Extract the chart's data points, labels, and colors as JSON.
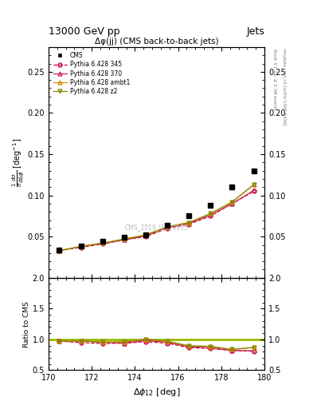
{
  "title_top": "13000 GeV pp",
  "title_right": "Jets",
  "plot_title": "Δφ(jj) (CMS back-to-back jets)",
  "watermark": "CMS_2019_I1719955",
  "right_label_top": "Rivet 3.1.10, ≥ 3.1M events",
  "right_label_bot": "mcplots.cern.ch [arXiv:1306.3436]",
  "xlabel": "Δφ₁₂ [deg]",
  "ylabel_ratio": "Ratio to CMS",
  "xlim": [
    170,
    180
  ],
  "ylim_main": [
    0.0,
    0.28
  ],
  "ylim_ratio": [
    0.5,
    2.0
  ],
  "yticks_main": [
    0.05,
    0.1,
    0.15,
    0.2,
    0.25
  ],
  "yticks_ratio": [
    0.5,
    1.0,
    1.5,
    2.0
  ],
  "x_data": [
    170.5,
    171.5,
    172.5,
    173.5,
    174.5,
    175.5,
    176.5,
    177.5,
    178.5,
    179.5
  ],
  "cms_y": [
    0.034,
    0.039,
    0.044,
    0.049,
    0.052,
    0.064,
    0.075,
    0.088,
    0.11,
    0.13
  ],
  "py345_y": [
    0.033,
    0.037,
    0.041,
    0.046,
    0.05,
    0.06,
    0.065,
    0.075,
    0.09,
    0.105
  ],
  "py370_y": [
    0.033,
    0.038,
    0.042,
    0.046,
    0.051,
    0.061,
    0.066,
    0.076,
    0.09,
    0.106
  ],
  "pyambt1_y": [
    0.033,
    0.038,
    0.042,
    0.047,
    0.052,
    0.062,
    0.067,
    0.078,
    0.092,
    0.113
  ],
  "pyz2_y": [
    0.033,
    0.038,
    0.042,
    0.047,
    0.052,
    0.062,
    0.067,
    0.078,
    0.092,
    0.113
  ],
  "cms_color": "#000000",
  "py345_color": "#cc0033",
  "py370_color": "#cc2255",
  "pyambt1_color": "#dd8800",
  "pyz2_color": "#888800",
  "bg_color": "#ffffff",
  "ratio_line_color": "#99bb00"
}
